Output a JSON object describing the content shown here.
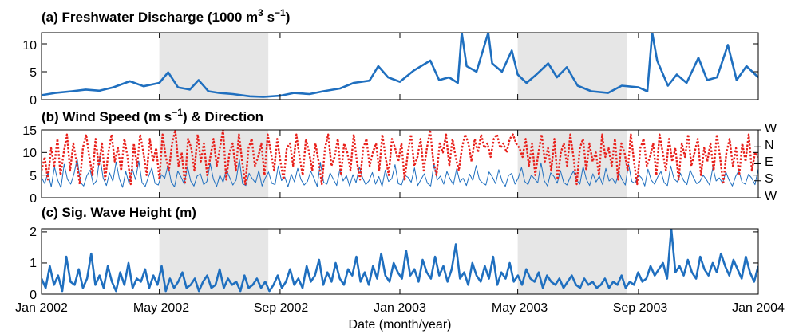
{
  "chart_data": [
    {
      "type": "line",
      "title": "(a) Freshwater Discharge (1000 m",
      "title_sup1": "3",
      "title_mid": " s",
      "title_sup2": "−1",
      "title_end": ")",
      "ylim": [
        0,
        12
      ],
      "yticks": [
        "0",
        "5",
        "10"
      ],
      "ytick_values": [
        0,
        5,
        10
      ],
      "series": [
        {
          "color": "#1f6fbf",
          "x": [
            "2002-01-01",
            "2002-01-15",
            "2002-02-01",
            "2002-02-15",
            "2002-03-01",
            "2002-03-15",
            "2002-04-01",
            "2002-04-15",
            "2002-05-01",
            "2002-05-10",
            "2002-05-20",
            "2002-06-01",
            "2002-06-10",
            "2002-06-20",
            "2002-07-01",
            "2002-07-15",
            "2002-08-01",
            "2002-08-15",
            "2002-09-01",
            "2002-09-15",
            "2002-10-01",
            "2002-10-15",
            "2002-11-01",
            "2002-11-15",
            "2002-12-01",
            "2002-12-10",
            "2002-12-20",
            "2003-01-01",
            "2003-01-15",
            "2003-02-01",
            "2003-02-10",
            "2003-02-20",
            "2003-03-01",
            "2003-03-05",
            "2003-03-10",
            "2003-03-20",
            "2003-04-01",
            "2003-04-05",
            "2003-04-15",
            "2003-04-25",
            "2003-05-01",
            "2003-05-10",
            "2003-05-20",
            "2003-06-01",
            "2003-06-10",
            "2003-06-20",
            "2003-07-01",
            "2003-07-15",
            "2003-08-01",
            "2003-08-15",
            "2003-09-01",
            "2003-09-10",
            "2003-09-15",
            "2003-09-20",
            "2003-10-01",
            "2003-10-10",
            "2003-10-20",
            "2003-11-01",
            "2003-11-10",
            "2003-11-20",
            "2003-12-01",
            "2003-12-10",
            "2003-12-20",
            "2004-01-01"
          ],
          "y": [
            0.8,
            1.2,
            1.5,
            1.8,
            1.6,
            2.2,
            3.3,
            2.4,
            3.0,
            4.9,
            2.2,
            1.8,
            3.5,
            1.5,
            1.2,
            1.0,
            0.6,
            0.5,
            0.7,
            1.2,
            1.0,
            1.5,
            2.0,
            3.0,
            3.4,
            6.0,
            4.0,
            3.2,
            5.2,
            7.0,
            3.5,
            4.0,
            3.0,
            12.0,
            6.0,
            5.0,
            12.0,
            6.5,
            5.0,
            8.8,
            4.5,
            3.0,
            4.5,
            6.5,
            4.0,
            5.8,
            2.5,
            1.5,
            1.2,
            2.5,
            2.2,
            1.5,
            12.0,
            7.0,
            2.5,
            4.5,
            3.0,
            7.5,
            3.5,
            4.0,
            9.8,
            3.5,
            6.0,
            4.0
          ]
        }
      ]
    },
    {
      "type": "line",
      "title": "(b) Wind Speed (m s",
      "title_sup": "−1",
      "title_end": ")  & Direction",
      "ylim": [
        0,
        15
      ],
      "yticks": [
        "0",
        "5",
        "10",
        "15"
      ],
      "ytick_values": [
        0,
        5,
        10,
        15
      ],
      "right_ticks": [
        "W",
        "N",
        "E",
        "S",
        "W"
      ],
      "right_tick_values": [
        15,
        11.25,
        7.5,
        3.75,
        0
      ],
      "series": [
        {
          "color": "#1f6fbf",
          "style": "solid",
          "x_start": "2002-01-01",
          "x_end": "2004-01-01",
          "y": [
            4.5,
            3.1,
            5.6,
            2.4,
            6.8,
            3.9,
            2.2,
            7.4,
            4.1,
            3.0,
            5.2,
            8.6,
            3.4,
            2.6,
            4.9,
            6.1,
            2.9,
            3.8,
            9.2,
            4.4,
            2.7,
            5.5,
            3.6,
            7.9,
            4.2,
            2.3,
            5.8,
            3.1,
            6.4,
            4.0,
            8.1,
            3.3,
            2.5,
            4.7,
            6.6,
            3.2,
            2.8,
            5.1,
            4.3,
            7.2,
            3.5,
            2.4,
            5.9,
            4.6,
            3.0,
            6.9,
            3.7,
            2.6,
            4.8,
            5.3,
            2.9,
            3.6,
            7.6,
            4.1,
            2.5,
            5.0,
            3.4,
            6.2,
            4.5,
            2.8,
            3.9,
            8.4,
            3.1,
            2.7,
            5.4,
            4.2,
            3.3,
            6.0,
            2.6,
            4.4,
            5.7,
            3.2,
            2.9,
            7.0,
            3.8,
            4.6,
            2.4,
            5.2,
            3.5,
            6.5,
            4.0,
            2.8,
            3.6,
            5.9,
            4.3,
            2.5,
            7.8,
            3.4,
            3.0,
            5.5,
            4.1,
            2.7,
            6.3,
            3.7,
            4.9,
            2.6,
            5.1,
            3.3,
            6.8,
            4.4,
            2.9,
            3.8,
            5.6,
            3.0,
            4.7,
            2.5,
            6.1,
            3.6,
            4.2,
            7.3,
            3.1,
            2.8,
            5.0,
            4.5,
            3.4,
            6.6,
            2.7,
            4.0,
            5.3,
            3.2,
            2.6,
            7.5,
            3.9,
            4.8,
            3.0,
            5.8,
            4.1,
            2.9,
            6.4,
            3.5,
            4.3,
            2.7,
            5.2,
            3.8,
            7.1,
            4.0,
            3.3,
            2.8,
            5.7,
            4.6,
            3.1,
            6.2,
            3.7,
            2.5,
            4.9,
            5.4,
            3.0,
            4.4,
            6.7,
            3.6,
            2.9,
            5.0,
            4.2,
            3.3,
            7.7,
            3.8,
            2.6,
            5.5,
            4.7,
            3.2,
            6.0,
            3.4,
            2.8,
            4.5,
            5.9,
            3.9,
            3.0,
            6.9,
            4.1,
            2.7,
            5.3,
            3.5,
            4.8,
            2.9,
            6.5,
            3.7,
            4.3,
            3.1,
            5.6,
            4.0,
            2.8,
            7.4,
            3.6,
            3.2,
            5.1,
            4.4,
            2.6,
            6.3,
            3.9,
            3.0,
            4.6,
            5.8,
            3.3,
            2.7,
            7.0,
            4.2,
            3.5,
            5.4,
            3.8,
            2.9,
            6.1,
            4.5,
            3.1,
            3.6,
            5.0,
            4.0,
            2.8,
            6.7,
            3.7,
            4.4,
            3.2,
            5.7,
            3.9,
            2.6,
            4.7,
            6.0,
            3.4,
            3.0,
            5.2,
            4.3,
            2.9,
            6.4
          ]
        },
        {
          "color": "#e8201b",
          "style": "dotted",
          "x_start": "2002-01-01",
          "x_end": "2004-01-01",
          "y": [
            6,
            9,
            4,
            11,
            7,
            13,
            5,
            10,
            14,
            6,
            12,
            8,
            3,
            11,
            14,
            9,
            5,
            13,
            7,
            12,
            4,
            10,
            14,
            8,
            11,
            6,
            13,
            9,
            3,
            12,
            7,
            14,
            10,
            5,
            13,
            8,
            11,
            4,
            14,
            9,
            6,
            12,
            15,
            7,
            10,
            3,
            13,
            11,
            6,
            14,
            8,
            12,
            5,
            9,
            13,
            7,
            11,
            15,
            4,
            10,
            12,
            6,
            14,
            8,
            3,
            11,
            13,
            7,
            9,
            12,
            5,
            14,
            10,
            6,
            13,
            8,
            4,
            11,
            12,
            7,
            14,
            9,
            5,
            13,
            10,
            6,
            12,
            8,
            3,
            11,
            14,
            7,
            9,
            13,
            5,
            12,
            10,
            6,
            14,
            8,
            4,
            11,
            13,
            7,
            10,
            12,
            6,
            14,
            9,
            5,
            13,
            11,
            8,
            12,
            4,
            10,
            14,
            7,
            9,
            13,
            6,
            11,
            15,
            8,
            5,
            12,
            10,
            14,
            7,
            13,
            9,
            6,
            11,
            14,
            12,
            8,
            13,
            10,
            14,
            11,
            12,
            9,
            13,
            14,
            11,
            12,
            10,
            13,
            14,
            12,
            11,
            9,
            13,
            7,
            12,
            5,
            10,
            14,
            8,
            11,
            6,
            13,
            4,
            10,
            12,
            7,
            14,
            9,
            3,
            11,
            13,
            6,
            12,
            8,
            10,
            5,
            14,
            9,
            11,
            7,
            13,
            4,
            12,
            10,
            6,
            14,
            8,
            3,
            11,
            13,
            7,
            9,
            12,
            5,
            14,
            10,
            6,
            13,
            8,
            11,
            4,
            12,
            9,
            14,
            7,
            10,
            13,
            5,
            11,
            8,
            12,
            6,
            14,
            9,
            3,
            10,
            13,
            7,
            11,
            5,
            12,
            8,
            14,
            6,
            10,
            9
          ]
        }
      ]
    },
    {
      "type": "line",
      "title": "(c) Sig. Wave Height (m)",
      "ylim": [
        0,
        2.1
      ],
      "yticks": [
        "0",
        "1",
        "2"
      ],
      "ytick_values": [
        0,
        1,
        2
      ],
      "series": [
        {
          "color": "#1f6fbf",
          "x_start": "2002-01-01",
          "x_end": "2004-01-01",
          "y": [
            0.5,
            0.2,
            0.9,
            0.3,
            0.6,
            0.1,
            1.2,
            0.4,
            0.3,
            0.8,
            0.2,
            0.5,
            1.3,
            0.3,
            0.6,
            0.2,
            0.9,
            0.4,
            0.1,
            0.7,
            0.3,
            1.0,
            0.2,
            0.5,
            0.4,
            0.8,
            0.2,
            0.6,
            0.3,
            0.9,
            0.1,
            0.5,
            0.2,
            0.4,
            0.7,
            0.2,
            0.3,
            0.5,
            0.1,
            0.4,
            0.6,
            0.2,
            0.3,
            0.8,
            0.2,
            0.5,
            0.3,
            0.4,
            0.1,
            0.6,
            0.2,
            0.3,
            0.5,
            0.2,
            0.4,
            0.1,
            0.3,
            0.6,
            0.2,
            0.4,
            0.8,
            0.3,
            0.5,
            0.2,
            0.9,
            0.4,
            0.6,
            1.1,
            0.3,
            0.7,
            0.4,
            1.0,
            0.5,
            0.3,
            0.8,
            0.6,
            1.2,
            0.4,
            0.7,
            0.3,
            0.9,
            0.5,
            1.3,
            0.6,
            0.4,
            1.0,
            0.7,
            0.5,
            1.4,
            0.6,
            0.8,
            0.4,
            1.1,
            0.7,
            0.5,
            1.2,
            0.6,
            0.9,
            0.4,
            0.8,
            1.6,
            0.5,
            0.7,
            0.3,
            1.0,
            0.6,
            0.4,
            0.9,
            0.5,
            1.2,
            0.3,
            0.7,
            0.5,
            1.0,
            0.4,
            0.6,
            0.3,
            0.8,
            0.5,
            0.4,
            0.7,
            0.2,
            0.6,
            0.4,
            0.3,
            0.5,
            0.2,
            0.4,
            0.6,
            0.3,
            0.2,
            0.5,
            0.3,
            0.4,
            0.2,
            0.3,
            0.5,
            0.2,
            0.4,
            0.3,
            0.6,
            0.2,
            0.4,
            0.3,
            0.7,
            0.4,
            0.5,
            0.9,
            0.6,
            0.8,
            1.0,
            0.5,
            2.1,
            0.7,
            0.9,
            0.6,
            1.1,
            0.7,
            0.5,
            1.2,
            0.8,
            0.6,
            1.0,
            0.7,
            1.3,
            0.9,
            0.6,
            1.1,
            0.8,
            0.5,
            1.2,
            0.7,
            0.4,
            0.9
          ]
        }
      ]
    }
  ],
  "x_axis": {
    "label": "Date (month/year)",
    "ticks": [
      "Jan 2002",
      "May 2002",
      "Sep 2002",
      "Jan 2003",
      "May 2003",
      "Sep 2003",
      "Jan 2004"
    ],
    "tick_dates": [
      "2002-01-01",
      "2002-05-01",
      "2002-09-01",
      "2003-01-01",
      "2003-05-01",
      "2003-09-01",
      "2004-01-01"
    ],
    "range": [
      "2002-01-01",
      "2004-01-01"
    ]
  },
  "shaded_periods": [
    [
      "2002-05-01",
      "2002-08-20"
    ],
    [
      "2003-05-01",
      "2003-08-20"
    ]
  ],
  "shade_color": "#e6e6e6"
}
